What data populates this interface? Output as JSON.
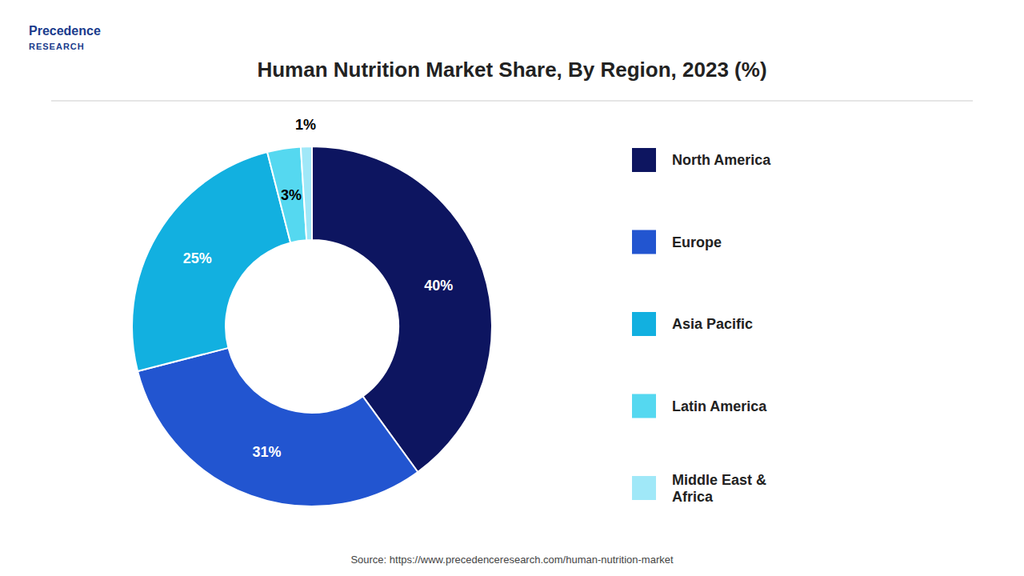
{
  "chart_data": {
    "type": "donut",
    "title": "Human Nutrition Market Share, By Region, 2023 (%)",
    "categories": [
      "North America",
      "Europe",
      "Asia Pacific",
      "Latin America",
      "Middle East &\nAfrica"
    ],
    "values": [
      40,
      31,
      25,
      3,
      1
    ],
    "value_labels": [
      "40%",
      "31%",
      "25%",
      "3%",
      "1%"
    ],
    "colors": [
      "#0d1560",
      "#2255d0",
      "#12b0e0",
      "#55d8f0",
      "#a0e8f8"
    ],
    "data_labels": true,
    "legend": "right",
    "source": "Source: https://www.precedenceresearch.com/human-nutrition-market",
    "annotations": [
      "Precedence",
      "RESEARCH"
    ]
  }
}
